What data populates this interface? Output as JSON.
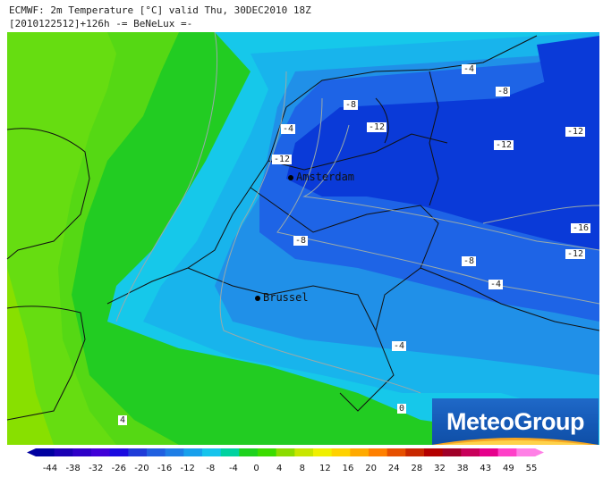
{
  "header": {
    "line1": "ECMWF: 2m Temperature [°C] valid Thu, 30DEC2010 18Z",
    "line2": "[2010122512]+126h -= BeNeLux =-"
  },
  "cities": {
    "amsterdam": "Amsterdam",
    "brussel": "Brussel"
  },
  "contour_labels": [
    "-4",
    "-8",
    "-12",
    "-4",
    "-12",
    "-8",
    "-12",
    "-12",
    "-16",
    "-12",
    "-8",
    "-8",
    "-4",
    "-4",
    "0",
    "4"
  ],
  "logo": "MeteoGroup",
  "colorbar": {
    "ticks": [
      "-44",
      "-38",
      "-32",
      "-26",
      "-20",
      "-16",
      "-12",
      "-8",
      "-4",
      "0",
      "4",
      "8",
      "12",
      "16",
      "20",
      "24",
      "28",
      "32",
      "38",
      "43",
      "49",
      "55"
    ],
    "colors": [
      "#0000a0",
      "#1a00b4",
      "#2e00c8",
      "#4000d8",
      "#1a0ae0",
      "#1f3cd8",
      "#2060e0",
      "#1e7ee6",
      "#18a0ec",
      "#16c4ec",
      "#00d2a0",
      "#1ed21e",
      "#3cdc00",
      "#8cdc00",
      "#c8e600",
      "#f0f000",
      "#ffd200",
      "#ffaa00",
      "#ff8000",
      "#e65000",
      "#c82800",
      "#b40000",
      "#a00028",
      "#c8005a",
      "#e6008c",
      "#ff40c8",
      "#ff80e6"
    ]
  },
  "colors": {
    "deep_blue": "#0a3ad8",
    "blue": "#1e64e6",
    "mid_blue": "#2090e8",
    "light_blue": "#18b4ec",
    "cyan": "#16c8ea",
    "green": "#22cc22",
    "light_green": "#66dd11",
    "lime": "#88e000"
  }
}
